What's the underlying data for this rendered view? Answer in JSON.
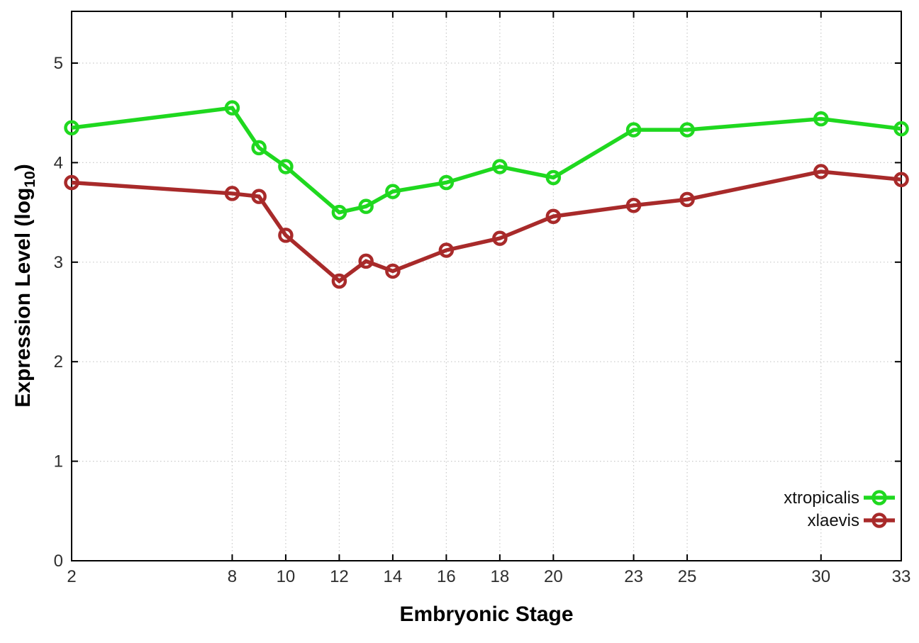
{
  "chart_data": {
    "type": "line",
    "title": "",
    "xlabel": "Embryonic Stage",
    "ylabel_prefix": "Expression Level (log",
    "ylabel_sub": "10",
    "ylabel_suffix": ")",
    "x": [
      2,
      8,
      9,
      10,
      12,
      13,
      14,
      16,
      18,
      20,
      23,
      25,
      30,
      33
    ],
    "series": [
      {
        "name": "xtropicalis",
        "color": "#1fd81f",
        "values": [
          4.35,
          4.55,
          4.15,
          3.96,
          3.5,
          3.56,
          3.71,
          3.8,
          3.96,
          3.85,
          4.33,
          4.33,
          4.44,
          4.34
        ]
      },
      {
        "name": "xlaevis",
        "color": "#a82a2a",
        "values": [
          3.8,
          3.69,
          3.66,
          3.27,
          2.81,
          3.01,
          2.91,
          3.12,
          3.24,
          3.46,
          3.57,
          3.63,
          3.91,
          3.83
        ]
      }
    ],
    "xlim": [
      2,
      33
    ],
    "ylim": [
      0,
      5.52
    ],
    "x_ticks": [
      2,
      8,
      10,
      12,
      14,
      16,
      18,
      20,
      23,
      25,
      30,
      33
    ],
    "y_ticks": [
      0,
      1,
      2,
      3,
      4,
      5
    ],
    "grid": true,
    "legend_position": "right-middle",
    "colors": {
      "background": "#ffffff",
      "axis": "#000000",
      "gridline": "#c9c9c9",
      "tick_text": "#2e2e2e"
    }
  }
}
